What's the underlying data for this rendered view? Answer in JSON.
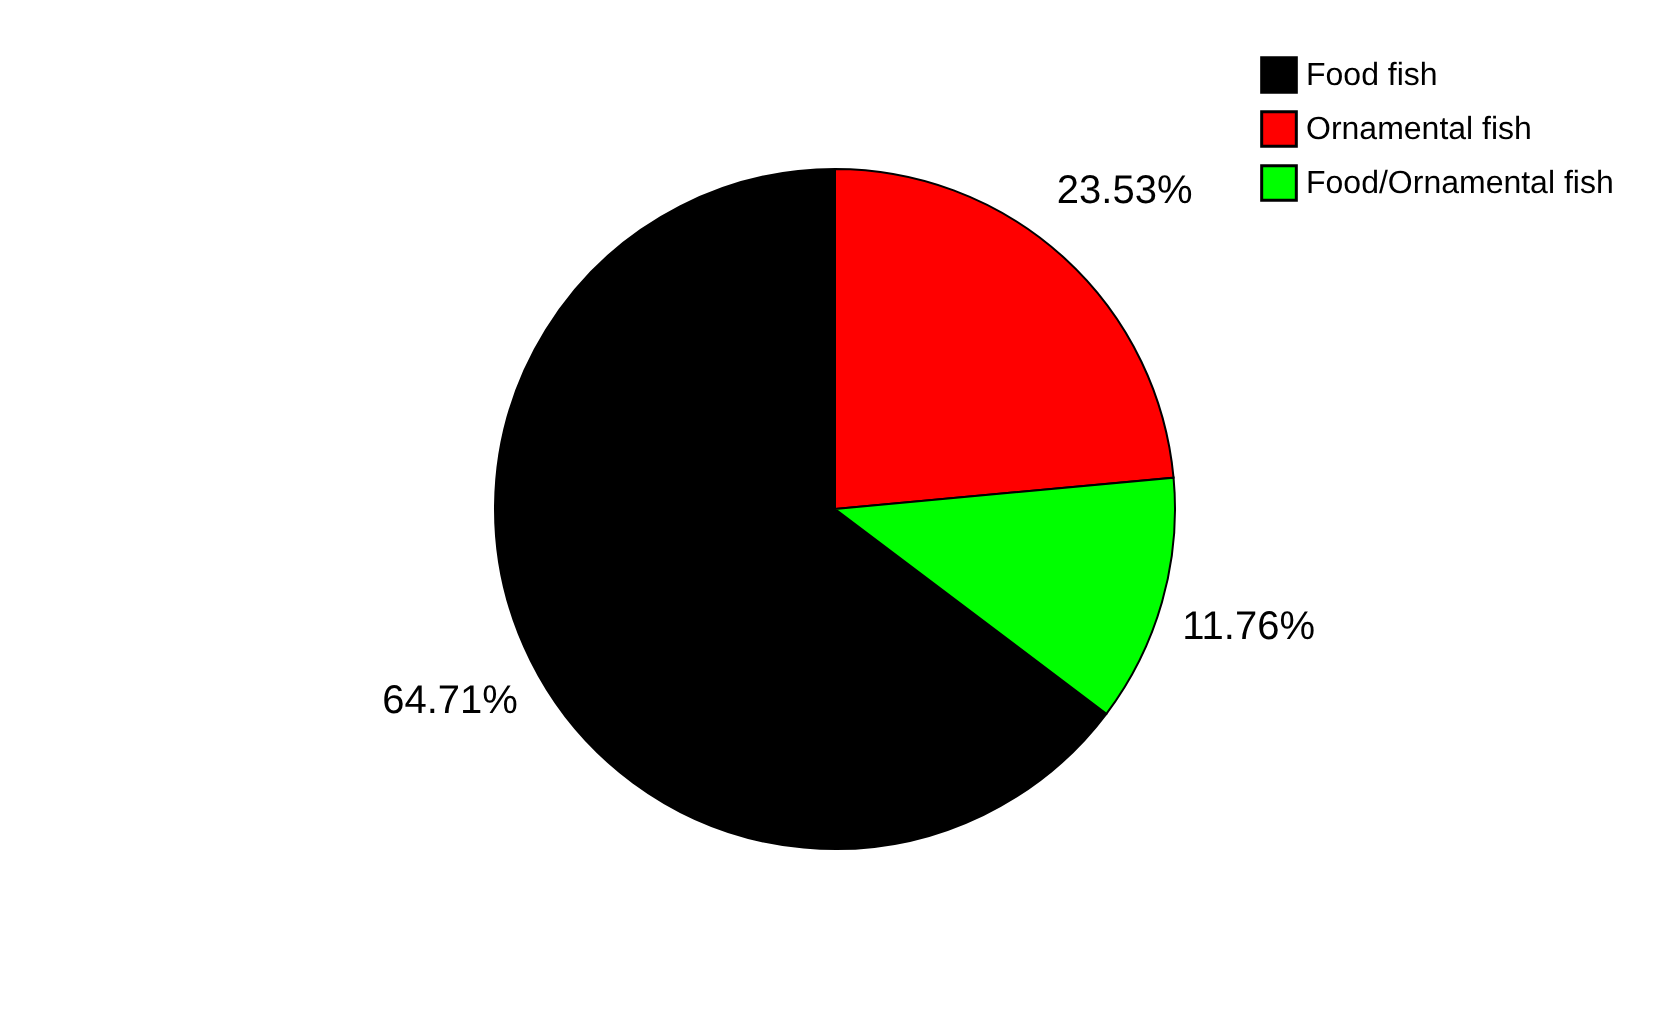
{
  "chart_data": {
    "type": "pie",
    "categories": [
      "Food fish",
      "Ornamental fish",
      "Food/Ornamental fish"
    ],
    "values": [
      64.71,
      23.53,
      11.76
    ],
    "colors": [
      "#000000",
      "#ff0000",
      "#00ff00"
    ],
    "value_labels": [
      "64.71%",
      "23.53%",
      "11.76%"
    ],
    "legend": "top right"
  }
}
